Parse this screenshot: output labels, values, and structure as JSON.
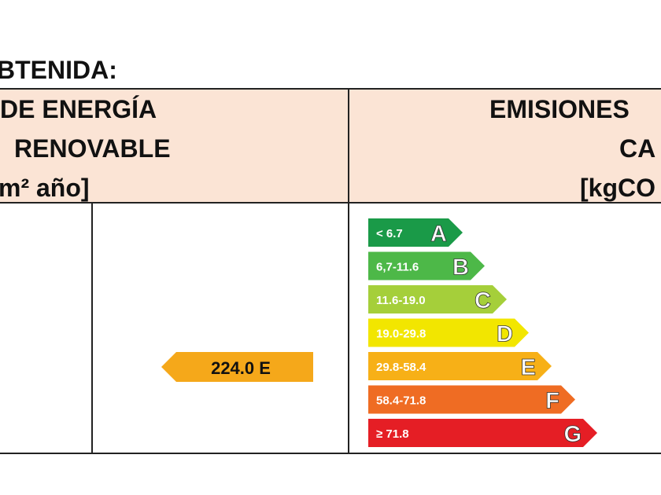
{
  "title": "BTENIDA:",
  "header": {
    "left": [
      "DE ENERGÍA",
      "RENOVABLE",
      "m² año]"
    ],
    "right": [
      "EMISIONES",
      "CA",
      "[kgCO"
    ]
  },
  "indicator": "224.0 E",
  "scale": [
    {
      "range": "< 6.7",
      "letter": "A"
    },
    {
      "range": "6,7-11.6",
      "letter": "B"
    },
    {
      "range": "11.6-19.0",
      "letter": "C"
    },
    {
      "range": "19.0-29.8",
      "letter": "D"
    },
    {
      "range": "29.8-58.4",
      "letter": "E"
    },
    {
      "range": "58.4-71.8",
      "letter": "F"
    },
    {
      "range": "≥ 71.8",
      "letter": "G"
    }
  ]
}
